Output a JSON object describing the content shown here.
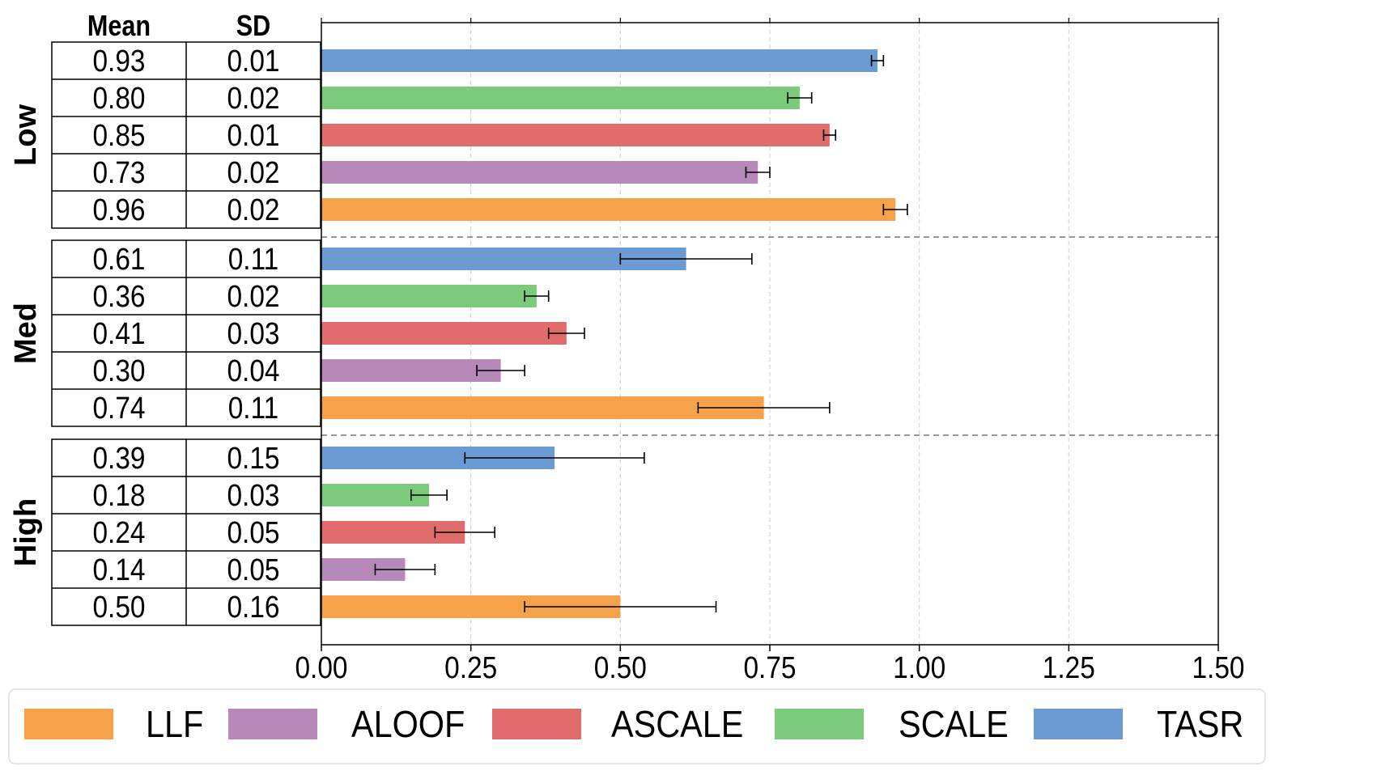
{
  "chart_data": {
    "type": "bar",
    "orientation": "horizontal",
    "title": "",
    "xlabel": "",
    "ylabel": "",
    "xlim": [
      0,
      1.5
    ],
    "xticks": [
      "0.00",
      "0.25",
      "0.50",
      "0.75",
      "1.00",
      "1.25",
      "1.50"
    ],
    "grid": "x-dashed",
    "legend_position": "bottom",
    "table_headers": [
      "Mean",
      "SD"
    ],
    "series": [
      {
        "name": "LLF",
        "color": "#f5a24b"
      },
      {
        "name": "ALOOF",
        "color": "#b689b9"
      },
      {
        "name": "ASCALE",
        "color": "#e06c6c"
      },
      {
        "name": "SCALE",
        "color": "#7ccb7c"
      },
      {
        "name": "TASR",
        "color": "#6b9bd2"
      }
    ],
    "groups": [
      {
        "label": "Low",
        "rows": [
          {
            "series": "TASR",
            "mean": 0.93,
            "sd": 0.01,
            "mean_label": "0.93",
            "sd_label": "0.01"
          },
          {
            "series": "SCALE",
            "mean": 0.8,
            "sd": 0.02,
            "mean_label": "0.80",
            "sd_label": "0.02"
          },
          {
            "series": "ASCALE",
            "mean": 0.85,
            "sd": 0.01,
            "mean_label": "0.85",
            "sd_label": "0.01"
          },
          {
            "series": "ALOOF",
            "mean": 0.73,
            "sd": 0.02,
            "mean_label": "0.73",
            "sd_label": "0.02"
          },
          {
            "series": "LLF",
            "mean": 0.96,
            "sd": 0.02,
            "mean_label": "0.96",
            "sd_label": "0.02"
          }
        ]
      },
      {
        "label": "Med",
        "rows": [
          {
            "series": "TASR",
            "mean": 0.61,
            "sd": 0.11,
            "mean_label": "0.61",
            "sd_label": "0.11"
          },
          {
            "series": "SCALE",
            "mean": 0.36,
            "sd": 0.02,
            "mean_label": "0.36",
            "sd_label": "0.02"
          },
          {
            "series": "ASCALE",
            "mean": 0.41,
            "sd": 0.03,
            "mean_label": "0.41",
            "sd_label": "0.03"
          },
          {
            "series": "ALOOF",
            "mean": 0.3,
            "sd": 0.04,
            "mean_label": "0.30",
            "sd_label": "0.04"
          },
          {
            "series": "LLF",
            "mean": 0.74,
            "sd": 0.11,
            "mean_label": "0.74",
            "sd_label": "0.11"
          }
        ]
      },
      {
        "label": "High",
        "rows": [
          {
            "series": "TASR",
            "mean": 0.39,
            "sd": 0.15,
            "mean_label": "0.39",
            "sd_label": "0.15"
          },
          {
            "series": "SCALE",
            "mean": 0.18,
            "sd": 0.03,
            "mean_label": "0.18",
            "sd_label": "0.03"
          },
          {
            "series": "ASCALE",
            "mean": 0.24,
            "sd": 0.05,
            "mean_label": "0.24",
            "sd_label": "0.05"
          },
          {
            "series": "ALOOF",
            "mean": 0.14,
            "sd": 0.05,
            "mean_label": "0.14",
            "sd_label": "0.05"
          },
          {
            "series": "LLF",
            "mean": 0.5,
            "sd": 0.16,
            "mean_label": "0.50",
            "sd_label": "0.16"
          }
        ]
      }
    ]
  }
}
